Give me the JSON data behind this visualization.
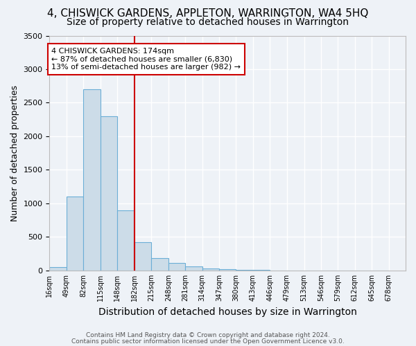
{
  "title": "4, CHISWICK GARDENS, APPLETON, WARRINGTON, WA4 5HQ",
  "subtitle": "Size of property relative to detached houses in Warrington",
  "xlabel": "Distribution of detached houses by size in Warrington",
  "ylabel": "Number of detached properties",
  "bin_edges": [
    16,
    49,
    82,
    115,
    148,
    182,
    215,
    248,
    281,
    314,
    347,
    380,
    413,
    446,
    479,
    513,
    546,
    579,
    612,
    645,
    678
  ],
  "bar_heights": [
    50,
    1100,
    2700,
    2300,
    900,
    420,
    180,
    110,
    60,
    30,
    20,
    5,
    5,
    2,
    1,
    1,
    0,
    0,
    0,
    0
  ],
  "bar_color": "#ccdce8",
  "bar_edge_color": "#6baed6",
  "property_line_x": 182,
  "property_size": 174,
  "annotation_line1": "4 CHISWICK GARDENS: 174sqm",
  "annotation_line2": "← 87% of detached houses are smaller (6,830)",
  "annotation_line3": "13% of semi-detached houses are larger (982) →",
  "annotation_box_color": "#ffffff",
  "annotation_box_edge_color": "#cc0000",
  "vline_color": "#cc0000",
  "ylim": [
    0,
    3500
  ],
  "yticks": [
    0,
    500,
    1000,
    1500,
    2000,
    2500,
    3000,
    3500
  ],
  "title_fontsize": 11,
  "subtitle_fontsize": 10,
  "xlabel_fontsize": 10,
  "ylabel_fontsize": 9,
  "tick_fontsize": 7,
  "tick_labels": [
    "16sqm",
    "49sqm",
    "82sqm",
    "115sqm",
    "148sqm",
    "182sqm",
    "215sqm",
    "248sqm",
    "281sqm",
    "314sqm",
    "347sqm",
    "380sqm",
    "413sqm",
    "446sqm",
    "479sqm",
    "513sqm",
    "546sqm",
    "579sqm",
    "612sqm",
    "645sqm",
    "678sqm"
  ],
  "footer_line1": "Contains HM Land Registry data © Crown copyright and database right 2024.",
  "footer_line2": "Contains public sector information licensed under the Open Government Licence v3.0.",
  "bg_color": "#eef2f7",
  "grid_color": "#ffffff",
  "annotation_fontsize": 8
}
